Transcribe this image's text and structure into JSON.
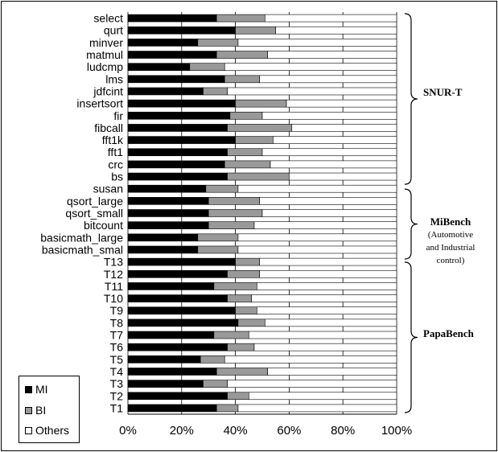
{
  "chart_data": {
    "type": "bar",
    "orientation": "horizontal",
    "stacked": "percent",
    "categories": [
      "select",
      "qurt",
      "minver",
      "matmul",
      "ludcmp",
      "lms",
      "jdfcint",
      "insertsort",
      "fir",
      "fibcall",
      "fft1k",
      "fft1",
      "crc",
      "bs",
      "susan",
      "qsort_large",
      "qsort_small",
      "bitcount",
      "basicmath_large",
      "basicmath_smal",
      "T13",
      "T12",
      "T11",
      "T10",
      "T9",
      "T8",
      "T7",
      "T6",
      "T5",
      "T4",
      "T3",
      "T2",
      "T1"
    ],
    "series": [
      {
        "name": "MI",
        "color": "#000000",
        "values": [
          33,
          40,
          26,
          33,
          23,
          36,
          28,
          40,
          38,
          37,
          40,
          37,
          36,
          37,
          29,
          30,
          30,
          30,
          26,
          26,
          40,
          37,
          32,
          37,
          40,
          41,
          32,
          37,
          27,
          33,
          28,
          37,
          33
        ]
      },
      {
        "name": "BI",
        "color": "#999999",
        "values": [
          18,
          15,
          15,
          19,
          13,
          13,
          9,
          19,
          12,
          24,
          14,
          13,
          17,
          23,
          12,
          19,
          20,
          17,
          15,
          15,
          9,
          12,
          16,
          9,
          8,
          10,
          13,
          10,
          9,
          19,
          9,
          8,
          8
        ]
      },
      {
        "name": "Others",
        "color": "#ffffff",
        "values": [
          49,
          45,
          59,
          48,
          64,
          51,
          63,
          41,
          50,
          39,
          46,
          50,
          47,
          40,
          59,
          51,
          50,
          53,
          59,
          59,
          51,
          51,
          52,
          54,
          52,
          49,
          55,
          53,
          64,
          48,
          63,
          55,
          59
        ]
      }
    ],
    "xlim": [
      0,
      100
    ],
    "xticks": [
      "0%",
      "20%",
      "40%",
      "60%",
      "80%",
      "100%"
    ],
    "grid": true,
    "legend_position": "bottom-left",
    "groups": [
      {
        "name": "SNUR-T",
        "sub": []
      },
      {
        "name": "MiBench",
        "sub": [
          "(Automotive",
          "and Industrial",
          "control)"
        ]
      },
      {
        "name": "PapaBench",
        "sub": []
      }
    ]
  }
}
